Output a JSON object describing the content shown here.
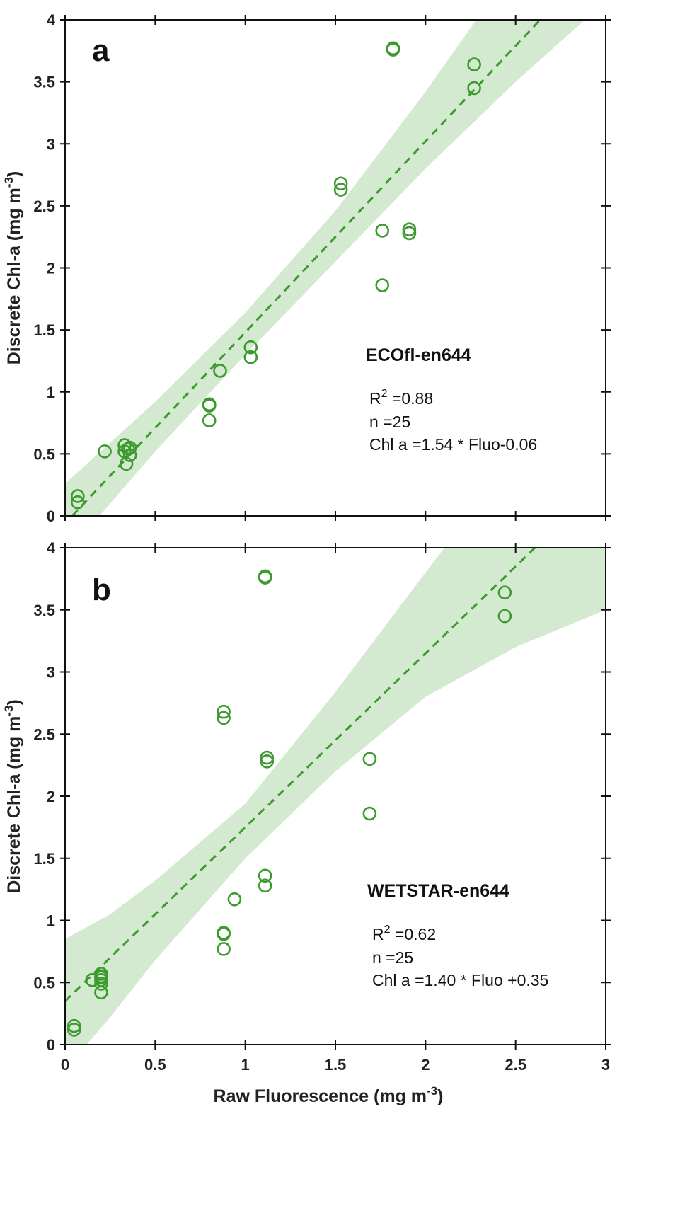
{
  "chart_data": [
    {
      "type": "scatter",
      "panel_label": "a",
      "instrument": "ECOfl-en644",
      "stats": {
        "r2_prefix": "R",
        "r2_sup": "2",
        "r2_value": " =0.88",
        "n": "n =25",
        "equation": "Chl a =1.54 * Fluo-0.06"
      },
      "ylabel": "Discrete Chl-a (mg m",
      "ylabel_sup": "-3",
      "ylabel_close": ")",
      "xlim": [
        0,
        3
      ],
      "ylim": [
        0,
        4
      ],
      "x_ticks": [
        "0",
        "0.5",
        "1",
        "1.5",
        "2",
        "2.5",
        "3"
      ],
      "y_ticks": [
        "0",
        "0.5",
        "1",
        "1.5",
        "2",
        "2.5",
        "3",
        "3.5",
        "4"
      ],
      "show_x_tick_labels": false,
      "fit": {
        "slope": 1.54,
        "intercept": -0.06
      },
      "band": {
        "x": [
          0,
          0.5,
          1,
          1.5,
          2,
          2.5,
          3
        ],
        "lower": [
          -0.32,
          0.52,
          1.3,
          2.05,
          2.8,
          3.5,
          4.15
        ],
        "upper": [
          0.26,
          0.92,
          1.64,
          2.46,
          3.42,
          4.45,
          5.5
        ]
      },
      "series": [
        {
          "x": [
            0.07,
            0.07,
            0.22,
            0.33,
            0.33,
            0.35,
            0.36,
            0.36,
            0.34,
            0.8,
            0.8,
            0.8,
            0.86,
            1.03,
            1.03,
            1.53,
            1.53,
            1.76,
            1.76,
            1.91,
            1.91,
            1.82,
            1.82,
            2.27,
            2.27
          ],
          "y": [
            0.16,
            0.11,
            0.52,
            0.57,
            0.52,
            0.54,
            0.55,
            0.49,
            0.42,
            0.9,
            0.89,
            0.77,
            1.17,
            1.36,
            1.28,
            2.68,
            2.63,
            2.3,
            1.86,
            2.31,
            2.28,
            3.77,
            3.76,
            3.64,
            3.45
          ]
        }
      ],
      "colors": {
        "marker": "#3d9a2f",
        "line": "#3d9a2f",
        "band": "#d4ead0"
      }
    },
    {
      "type": "scatter",
      "panel_label": "b",
      "instrument": "WETSTAR-en644",
      "stats": {
        "r2_prefix": "R",
        "r2_sup": "2",
        "r2_value": " =0.62",
        "n": "n =25",
        "equation": "Chl a =1.40 * Fluo +0.35"
      },
      "ylabel": "Discrete Chl-a (mg m",
      "ylabel_sup": "-3",
      "ylabel_close": ")",
      "xlabel": "Raw Fluorescence (mg m",
      "xlabel_sup": "-3",
      "xlabel_close": ")",
      "xlim": [
        0,
        3
      ],
      "ylim": [
        0,
        4
      ],
      "x_ticks": [
        "0",
        "0.5",
        "1",
        "1.5",
        "2",
        "2.5",
        "3"
      ],
      "y_ticks": [
        "0",
        "0.5",
        "1",
        "1.5",
        "2",
        "2.5",
        "3",
        "3.5",
        "4"
      ],
      "show_x_tick_labels": true,
      "fit": {
        "slope": 1.4,
        "intercept": 0.35
      },
      "band": {
        "x": [
          0,
          0.25,
          0.5,
          1,
          1.5,
          2,
          2.5,
          3
        ],
        "lower": [
          -0.2,
          0.22,
          0.68,
          1.5,
          2.2,
          2.8,
          3.2,
          3.5
        ],
        "upper": [
          0.85,
          1.05,
          1.32,
          1.94,
          2.84,
          3.8,
          4.75,
          5.8
        ]
      },
      "series": [
        {
          "x": [
            0.05,
            0.05,
            0.15,
            0.2,
            0.2,
            0.2,
            0.2,
            0.2,
            0.2,
            0.88,
            0.88,
            0.88,
            0.94,
            1.11,
            1.11,
            0.88,
            0.88,
            1.69,
            1.69,
            1.12,
            1.12,
            1.11,
            1.11,
            2.44,
            2.44
          ],
          "y": [
            0.15,
            0.12,
            0.52,
            0.57,
            0.52,
            0.54,
            0.55,
            0.49,
            0.42,
            0.9,
            0.89,
            0.77,
            1.17,
            1.36,
            1.28,
            2.68,
            2.63,
            2.3,
            1.86,
            2.31,
            2.28,
            3.77,
            3.76,
            3.64,
            3.45
          ]
        }
      ],
      "colors": {
        "marker": "#3d9a2f",
        "line": "#3d9a2f",
        "band": "#d4ead0"
      }
    }
  ]
}
